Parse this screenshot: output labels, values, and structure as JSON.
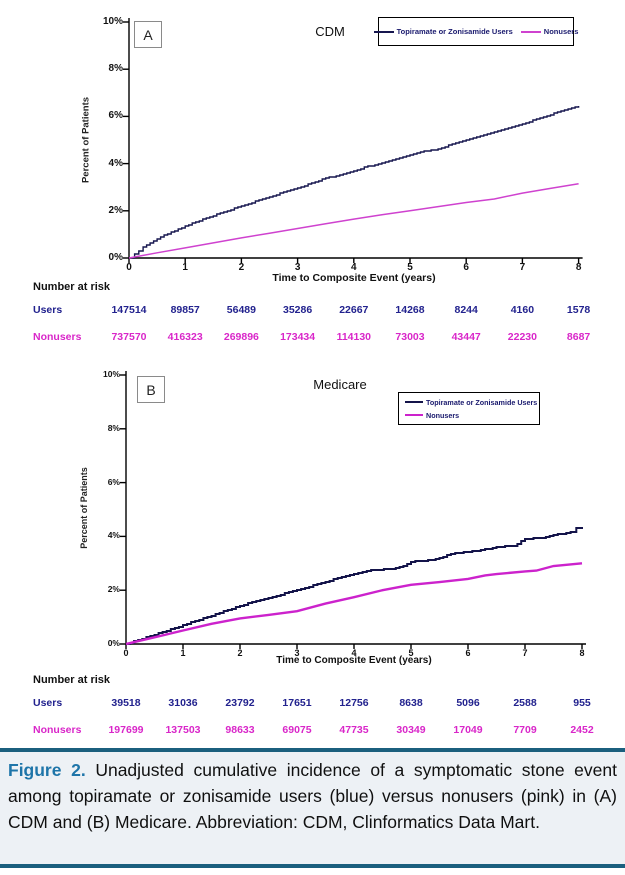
{
  "chart_data": [
    {
      "type": "line",
      "panel_label": "A",
      "title": "CDM",
      "xlabel": "Time to Composite Event (years)",
      "ylabel": "Percent of Patients",
      "xlim": [
        0,
        8
      ],
      "ylim": [
        0,
        10
      ],
      "xticks": [
        "0",
        "1",
        "2",
        "3",
        "4",
        "5",
        "6",
        "7",
        "8"
      ],
      "yticks": [
        "0%",
        "2%",
        "4%",
        "6%",
        "8%",
        "10%"
      ],
      "legend_position": "top-right-horizontal",
      "series": [
        {
          "name": "Topiramate or Zonisamide Users",
          "color": "#16164f",
          "style": "step",
          "points": [
            [
              0,
              0
            ],
            [
              0.1,
              0.18
            ],
            [
              0.25,
              0.45
            ],
            [
              0.5,
              0.82
            ],
            [
              0.75,
              1.1
            ],
            [
              1,
              1.35
            ],
            [
              1.25,
              1.58
            ],
            [
              1.5,
              1.8
            ],
            [
              1.75,
              2.0
            ],
            [
              2,
              2.2
            ],
            [
              2.25,
              2.4
            ],
            [
              2.5,
              2.6
            ],
            [
              2.75,
              2.78
            ],
            [
              3,
              2.95
            ],
            [
              3.25,
              3.18
            ],
            [
              3.5,
              3.38
            ],
            [
              3.75,
              3.52
            ],
            [
              4,
              3.7
            ],
            [
              4.25,
              3.88
            ],
            [
              4.5,
              4.02
            ],
            [
              4.75,
              4.18
            ],
            [
              5,
              4.38
            ],
            [
              5.25,
              4.52
            ],
            [
              5.5,
              4.62
            ],
            [
              5.75,
              4.82
            ],
            [
              6,
              5.02
            ],
            [
              6.25,
              5.18
            ],
            [
              6.5,
              5.32
            ],
            [
              6.75,
              5.5
            ],
            [
              7,
              5.68
            ],
            [
              7.25,
              5.88
            ],
            [
              7.5,
              6.08
            ],
            [
              7.75,
              6.28
            ],
            [
              8,
              6.42
            ]
          ]
        },
        {
          "name": "Nonusers",
          "color": "#cf42cf",
          "style": "line",
          "points": [
            [
              0,
              0
            ],
            [
              0.5,
              0.22
            ],
            [
              1,
              0.43
            ],
            [
              1.5,
              0.64
            ],
            [
              2,
              0.85
            ],
            [
              2.5,
              1.05
            ],
            [
              3,
              1.25
            ],
            [
              3.5,
              1.45
            ],
            [
              4,
              1.65
            ],
            [
              4.5,
              1.83
            ],
            [
              5,
              2.0
            ],
            [
              5.5,
              2.18
            ],
            [
              6,
              2.35
            ],
            [
              6.5,
              2.5
            ],
            [
              7,
              2.75
            ],
            [
              7.5,
              2.95
            ],
            [
              8,
              3.15
            ]
          ]
        }
      ],
      "number_at_risk": {
        "header": "Number at risk",
        "rows": [
          {
            "label": "Users",
            "color": "#22228e",
            "values": [
              "147514",
              "89857",
              "56489",
              "35286",
              "22667",
              "14268",
              "8244",
              "4160",
              "1578"
            ]
          },
          {
            "label": "Nonusers",
            "color": "#d926c9",
            "values": [
              "737570",
              "416323",
              "269896",
              "173434",
              "114130",
              "73003",
              "43447",
              "22230",
              "8687"
            ]
          }
        ]
      }
    },
    {
      "type": "line",
      "panel_label": "B",
      "title": "Medicare",
      "xlabel": "Time to Composite Event (years)",
      "ylabel": "Percent of Patients",
      "xlim": [
        0,
        8
      ],
      "ylim": [
        0,
        10
      ],
      "xticks": [
        "0",
        "1",
        "2",
        "3",
        "4",
        "5",
        "6",
        "7",
        "8"
      ],
      "yticks": [
        "0%",
        "2%",
        "4%",
        "6%",
        "8%",
        "10%"
      ],
      "legend_position": "top-right-vertical",
      "series": [
        {
          "name": "Topiramate or Zonisamide Users",
          "color": "#14144a",
          "style": "step",
          "points": [
            [
              0,
              0
            ],
            [
              0.5,
              0.35
            ],
            [
              1,
              0.7
            ],
            [
              1.5,
              1.05
            ],
            [
              2,
              1.42
            ],
            [
              2.5,
              1.72
            ],
            [
              3,
              2.0
            ],
            [
              3.5,
              2.32
            ],
            [
              4,
              2.6
            ],
            [
              4.3,
              2.75
            ],
            [
              4.6,
              2.78
            ],
            [
              4.8,
              2.85
            ],
            [
              5,
              3.05
            ],
            [
              5.3,
              3.12
            ],
            [
              5.5,
              3.18
            ],
            [
              5.7,
              3.35
            ],
            [
              6,
              3.42
            ],
            [
              6.3,
              3.52
            ],
            [
              6.5,
              3.6
            ],
            [
              6.8,
              3.65
            ],
            [
              7,
              3.9
            ],
            [
              7.3,
              3.95
            ],
            [
              7.5,
              4.05
            ],
            [
              7.8,
              4.15
            ],
            [
              7.9,
              4.3
            ],
            [
              8,
              4.35
            ]
          ]
        },
        {
          "name": "Nonusers",
          "color": "#cc22cc",
          "style": "line",
          "points": [
            [
              0,
              0
            ],
            [
              0.5,
              0.25
            ],
            [
              1,
              0.5
            ],
            [
              1.5,
              0.75
            ],
            [
              2,
              0.95
            ],
            [
              2.5,
              1.08
            ],
            [
              3,
              1.22
            ],
            [
              3.5,
              1.5
            ],
            [
              4,
              1.74
            ],
            [
              4.5,
              2.0
            ],
            [
              5,
              2.2
            ],
            [
              5.5,
              2.3
            ],
            [
              6,
              2.42
            ],
            [
              6.3,
              2.55
            ],
            [
              6.5,
              2.6
            ],
            [
              7,
              2.7
            ],
            [
              7.2,
              2.73
            ],
            [
              7.5,
              2.9
            ],
            [
              8,
              3.0
            ]
          ]
        }
      ],
      "number_at_risk": {
        "header": "Number at risk",
        "rows": [
          {
            "label": "Users",
            "color": "#22228e",
            "values": [
              "39518",
              "31036",
              "23792",
              "17651",
              "12756",
              "8638",
              "5096",
              "2588",
              "955"
            ]
          },
          {
            "label": "Nonusers",
            "color": "#d926c9",
            "values": [
              "197699",
              "137503",
              "98633",
              "69075",
              "47735",
              "30349",
              "17049",
              "7709",
              "2452"
            ]
          }
        ]
      }
    }
  ],
  "caption": {
    "label": "Figure 2.",
    "text": " Unadjusted cumulative incidence of a symptomatic stone event among topiramate or zonisamide users (blue) versus nonusers (pink) in (A) CDM and (B) Medicare. Abbreviation: CDM, Clinformatics Data Mart."
  }
}
